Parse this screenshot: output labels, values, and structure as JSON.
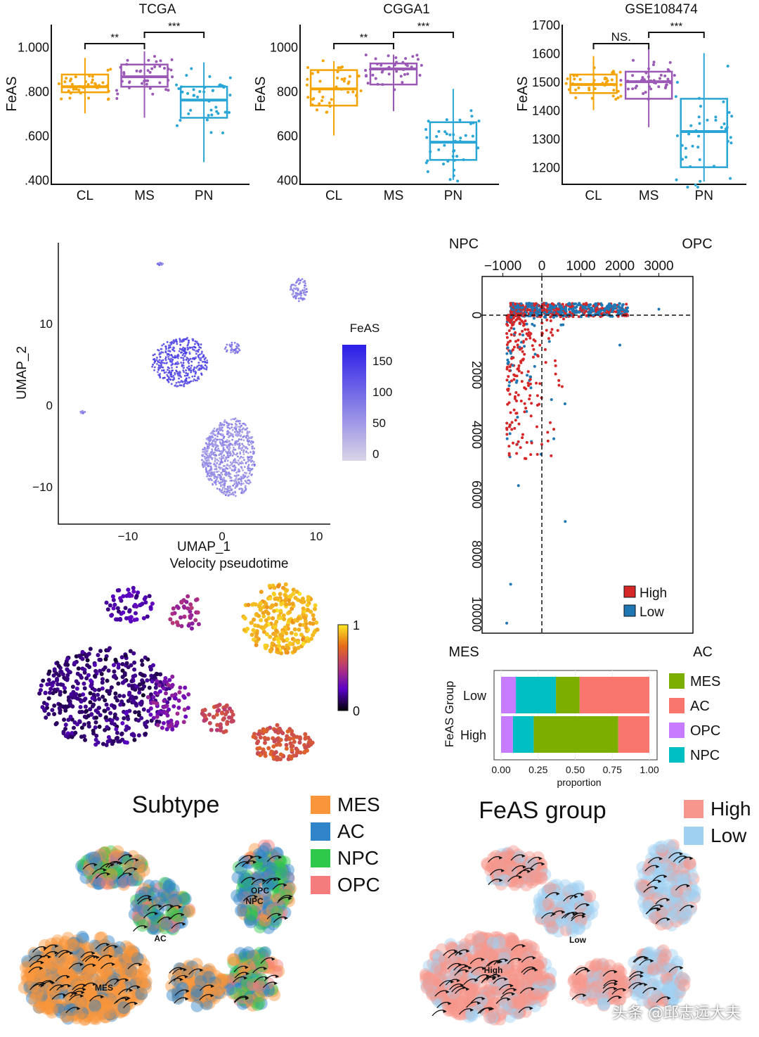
{
  "chart_data": [
    {
      "type": "box",
      "title": "TCGA",
      "ylabel": "FeAS",
      "categories": [
        "CL",
        "MS",
        "PN"
      ],
      "ytick_labels": [
        "1.000",
        ".800",
        ".600",
        ".400"
      ],
      "yticks": [
        1000,
        800,
        600,
        400
      ],
      "ylim": [
        380,
        1100
      ],
      "boxes": [
        {
          "q1": 795,
          "median": 820,
          "q3": 875,
          "low": 700,
          "high": 950
        },
        {
          "q1": 820,
          "median": 865,
          "q3": 920,
          "low": 680,
          "high": 980
        },
        {
          "q1": 680,
          "median": 760,
          "q3": 820,
          "low": 480,
          "high": 930
        }
      ],
      "comparisons": [
        {
          "from": "CL",
          "to": "MS",
          "label": "**"
        },
        {
          "from": "MS",
          "to": "PN",
          "label": "***"
        }
      ]
    },
    {
      "type": "box",
      "title": "CGGA1",
      "ylabel": "FeAS",
      "categories": [
        "CL",
        "MS",
        "PN"
      ],
      "ytick_labels": [
        "1000",
        "800",
        "600",
        "400"
      ],
      "yticks": [
        1000,
        800,
        600,
        400
      ],
      "ylim": [
        380,
        1100
      ],
      "boxes": [
        {
          "q1": 735,
          "median": 810,
          "q3": 895,
          "low": 600,
          "high": 935
        },
        {
          "q1": 830,
          "median": 900,
          "q3": 925,
          "low": 710,
          "high": 965
        },
        {
          "q1": 490,
          "median": 570,
          "q3": 660,
          "low": 400,
          "high": 810
        }
      ],
      "comparisons": [
        {
          "from": "CL",
          "to": "MS",
          "label": "**"
        },
        {
          "from": "MS",
          "to": "PN",
          "label": "***"
        }
      ]
    },
    {
      "type": "box",
      "title": "GSE108474",
      "ylabel": "FeAS",
      "categories": [
        "CL",
        "MS",
        "PN"
      ],
      "ytick_labels": [
        "1700",
        "1600",
        "1500",
        "1400",
        "1300",
        "1200"
      ],
      "yticks": [
        1700,
        1600,
        1500,
        1400,
        1300,
        1200
      ],
      "ylim": [
        1140,
        1700
      ],
      "boxes": [
        {
          "q1": 1460,
          "median": 1490,
          "q3": 1525,
          "low": 1400,
          "high": 1590
        },
        {
          "q1": 1440,
          "median": 1500,
          "q3": 1535,
          "low": 1340,
          "high": 1620
        },
        {
          "q1": 1200,
          "median": 1325,
          "q3": 1440,
          "low": 1150,
          "high": 1600
        }
      ],
      "comparisons": [
        {
          "from": "CL",
          "to": "MS",
          "label": "NS."
        },
        {
          "from": "MS",
          "to": "PN",
          "label": "***"
        }
      ]
    },
    {
      "type": "scatter",
      "xlabel": "UMAP_1",
      "ylabel": "UMAP_2",
      "xticks": [
        -10,
        0,
        10
      ],
      "yticks": [
        10,
        0,
        -10
      ],
      "color_legend": {
        "title": "FeAS",
        "ticks": [
          150,
          100,
          50,
          0
        ],
        "low_color": "#d9d4e6",
        "high_color": "#2b1ee8"
      }
    },
    {
      "type": "scatter",
      "title": "Velocity pseudotime",
      "colorbar": {
        "ticks": [
          "1",
          "0"
        ],
        "colors": [
          "#000004",
          "#5b00c8",
          "#b5367a",
          "#e56b1a",
          "#fde725"
        ]
      }
    },
    {
      "type": "scatter",
      "corner_labels": [
        "NPC",
        "OPC",
        "MES",
        "AC"
      ],
      "xticks": [
        -1000,
        0,
        1000,
        2000,
        3000
      ],
      "yticks": [
        0,
        2000,
        4000,
        6000,
        8000,
        10000
      ],
      "legend": [
        {
          "name": "High",
          "color": "#d62728"
        },
        {
          "name": "Low",
          "color": "#1f77b4"
        }
      ]
    },
    {
      "type": "bar",
      "stacked": true,
      "orientation": "horizontal",
      "ylabel": "FeAS Group",
      "xlabel": "proportion",
      "categories": [
        "Low",
        "High"
      ],
      "xticks": [
        "0.00",
        "0.25",
        "0.50",
        "0.75",
        "1.00"
      ],
      "series": [
        {
          "name": "OPC",
          "color": "#c77cff",
          "values": [
            0.1,
            0.08
          ]
        },
        {
          "name": "NPC",
          "color": "#00bfc4",
          "values": [
            0.27,
            0.14
          ]
        },
        {
          "name": "MES",
          "color": "#7cae00",
          "values": [
            0.16,
            0.57
          ]
        },
        {
          "name": "AC",
          "color": "#f8766d",
          "values": [
            0.47,
            0.21
          ]
        }
      ],
      "legend_order": [
        "MES",
        "AC",
        "OPC",
        "NPC"
      ]
    },
    {
      "type": "scatter",
      "title": "Subtype",
      "legend": [
        {
          "name": "MES",
          "color": "#f8953a"
        },
        {
          "name": "AC",
          "color": "#2f83c8"
        },
        {
          "name": "NPC",
          "color": "#2ec84a"
        },
        {
          "name": "OPC",
          "color": "#f47c7c"
        }
      ],
      "annotations": [
        "OPC",
        "NPC",
        "AC",
        "MES"
      ]
    },
    {
      "type": "scatter",
      "title": "FeAS group",
      "legend": [
        {
          "name": "High",
          "color": "#f6968c"
        },
        {
          "name": "Low",
          "color": "#9fd0f2"
        }
      ],
      "annotations": [
        "Low",
        "High"
      ]
    }
  ],
  "watermark": "头条 @邱志远大夫"
}
